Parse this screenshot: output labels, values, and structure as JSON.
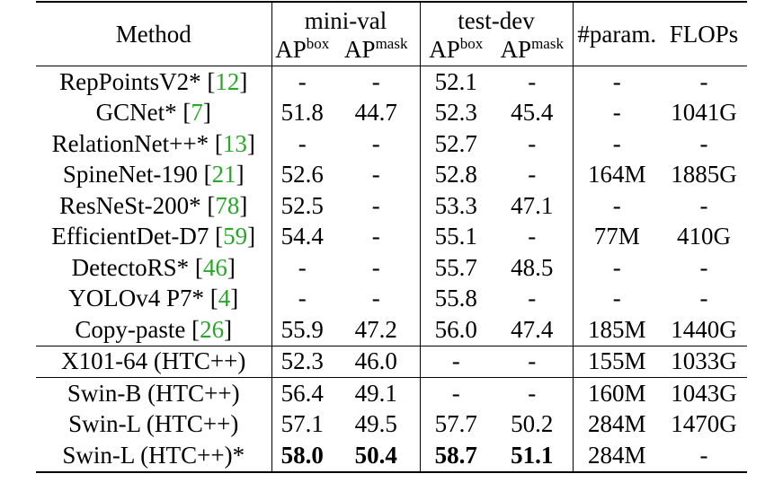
{
  "header": {
    "method": "Method",
    "group1": "mini-val",
    "group2": "test-dev",
    "param": "#param.",
    "flops": "FLOPs",
    "ap": "AP",
    "box": "box",
    "mask": "mask"
  },
  "rows": [
    {
      "name": "RepPointsV2* [",
      "ref": "12",
      "close": "]",
      "mv_box": "-",
      "mv_mask": "-",
      "td_box": "52.1",
      "td_mask": "-",
      "param": "-",
      "flops": "-"
    },
    {
      "name": "GCNet* [",
      "ref": "7",
      "close": "]",
      "mv_box": "51.8",
      "mv_mask": "44.7",
      "td_box": "52.3",
      "td_mask": "45.4",
      "param": "-",
      "flops": "1041G"
    },
    {
      "name": "RelationNet++* [",
      "ref": "13",
      "close": "]",
      "mv_box": "-",
      "mv_mask": "-",
      "td_box": "52.7",
      "td_mask": "-",
      "param": "-",
      "flops": "-"
    },
    {
      "name": "SpineNet-190 [",
      "ref": "21",
      "close": "]",
      "mv_box": "52.6",
      "mv_mask": "-",
      "td_box": "52.8",
      "td_mask": "-",
      "param": "164M",
      "flops": "1885G"
    },
    {
      "name": "ResNeSt-200* [",
      "ref": "78",
      "close": "]",
      "mv_box": "52.5",
      "mv_mask": "-",
      "td_box": "53.3",
      "td_mask": "47.1",
      "param": "-",
      "flops": "-"
    },
    {
      "name": "EfficientDet-D7 [",
      "ref": "59",
      "close": "]",
      "mv_box": "54.4",
      "mv_mask": "-",
      "td_box": "55.1",
      "td_mask": "-",
      "param": "77M",
      "flops": "410G"
    },
    {
      "name": "DetectoRS* [",
      "ref": "46",
      "close": "]",
      "mv_box": "-",
      "mv_mask": "-",
      "td_box": "55.7",
      "td_mask": "48.5",
      "param": "-",
      "flops": "-"
    },
    {
      "name": "YOLOv4 P7* [",
      "ref": "4",
      "close": "]",
      "mv_box": "-",
      "mv_mask": "-",
      "td_box": "55.8",
      "td_mask": "-",
      "param": "-",
      "flops": "-"
    },
    {
      "name": "Copy-paste [",
      "ref": "26",
      "close": "]",
      "mv_box": "55.9",
      "mv_mask": "47.2",
      "td_box": "56.0",
      "td_mask": "47.4",
      "param": "185M",
      "flops": "1440G"
    },
    {
      "name": "X101-64 (HTC++)",
      "ref": "",
      "close": "",
      "mv_box": "52.3",
      "mv_mask": "46.0",
      "td_box": "-",
      "td_mask": "-",
      "param": "155M",
      "flops": "1033G"
    },
    {
      "name": "Swin-B (HTC++)",
      "ref": "",
      "close": "",
      "mv_box": "56.4",
      "mv_mask": "49.1",
      "td_box": "-",
      "td_mask": "-",
      "param": "160M",
      "flops": "1043G"
    },
    {
      "name": "Swin-L (HTC++)",
      "ref": "",
      "close": "",
      "mv_box": "57.1",
      "mv_mask": "49.5",
      "td_box": "57.7",
      "td_mask": "50.2",
      "param": "284M",
      "flops": "1470G"
    },
    {
      "name": "Swin-L (HTC++)*",
      "ref": "",
      "close": "",
      "mv_box": "58.0",
      "mv_mask": "50.4",
      "td_box": "58.7",
      "td_mask": "51.1",
      "param": "284M",
      "flops": "-"
    }
  ]
}
